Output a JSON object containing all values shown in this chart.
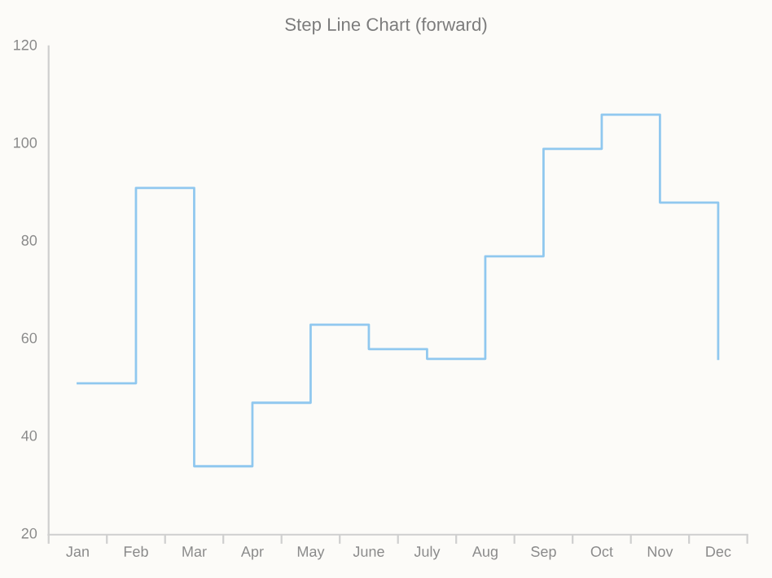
{
  "chart_data": {
    "type": "step",
    "title": "Step Line Chart (forward)",
    "categories": [
      "Jan",
      "Feb",
      "Mar",
      "Apr",
      "May",
      "June",
      "July",
      "Aug",
      "Sep",
      "Oct",
      "Nov",
      "Dec"
    ],
    "series": [
      {
        "color": "#90c8ef",
        "values": [
          51,
          91,
          34,
          47,
          63,
          58,
          56,
          77,
          99,
          106,
          88,
          56
        ]
      }
    ],
    "ylim": [
      20,
      120
    ],
    "yticks": [
      20,
      40,
      60,
      80,
      100,
      120
    ],
    "grid": false,
    "legend": false,
    "marker": "none",
    "line_style": "solid"
  }
}
